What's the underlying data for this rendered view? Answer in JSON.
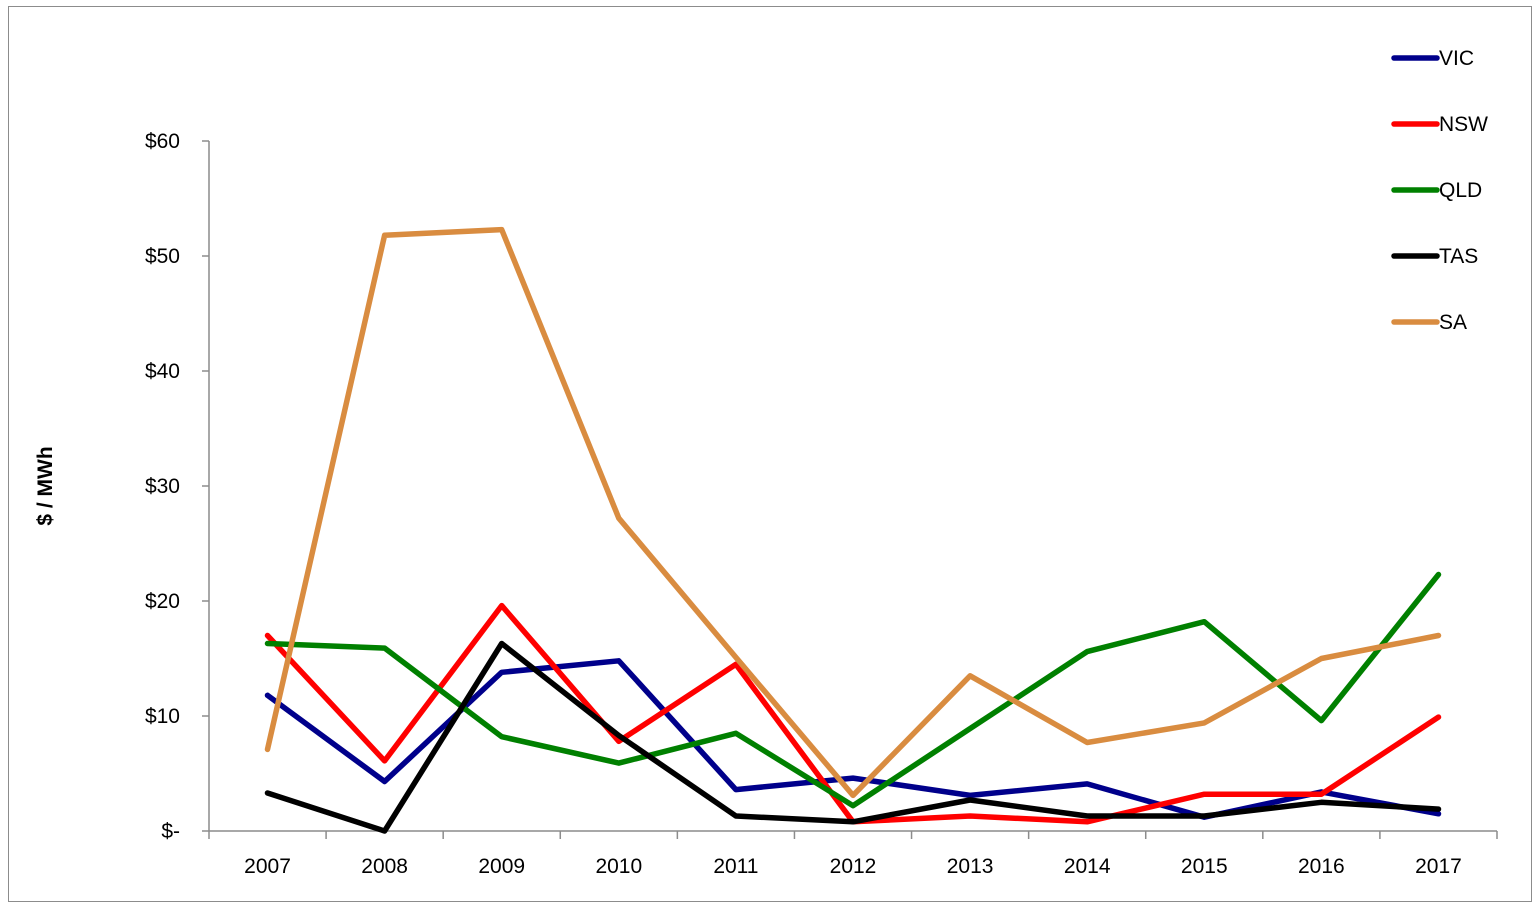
{
  "chart_data": {
    "type": "line",
    "title": "",
    "xlabel": "",
    "ylabel": "$ / MWh",
    "categories": [
      "2007",
      "2008",
      "2009",
      "2010",
      "2011",
      "2012",
      "2013",
      "2014",
      "2015",
      "2016",
      "2017"
    ],
    "y_ticks": [
      {
        "value": 0,
        "label": "$-"
      },
      {
        "value": 10,
        "label": "$10"
      },
      {
        "value": 20,
        "label": "$20"
      },
      {
        "value": 30,
        "label": "$30"
      },
      {
        "value": 40,
        "label": "$40"
      },
      {
        "value": 50,
        "label": "$50"
      },
      {
        "value": 60,
        "label": "$60"
      }
    ],
    "ylim": [
      0,
      60
    ],
    "grid": false,
    "legend_position": "top-right",
    "series": [
      {
        "name": "VIC",
        "color": "#00008b",
        "values": [
          11.8,
          4.3,
          13.8,
          14.8,
          3.6,
          4.6,
          3.1,
          4.1,
          1.2,
          3.4,
          1.5
        ]
      },
      {
        "name": "NSW",
        "color": "#ff0000",
        "values": [
          17.0,
          6.1,
          19.6,
          7.8,
          14.5,
          0.8,
          1.3,
          0.8,
          3.2,
          3.2,
          9.9
        ]
      },
      {
        "name": "QLD",
        "color": "#008000",
        "values": [
          16.3,
          15.9,
          8.2,
          5.9,
          8.5,
          2.2,
          8.9,
          15.6,
          18.2,
          9.6,
          22.3
        ]
      },
      {
        "name": "TAS",
        "color": "#000000",
        "values": [
          3.3,
          0.0,
          16.3,
          8.3,
          1.3,
          0.8,
          2.7,
          1.3,
          1.3,
          2.5,
          1.9
        ]
      },
      {
        "name": "SA",
        "color": "#d98c40",
        "values": [
          7.1,
          51.8,
          52.3,
          27.2,
          15.1,
          3.1,
          13.5,
          7.7,
          9.4,
          15.0,
          17.0
        ]
      }
    ]
  }
}
